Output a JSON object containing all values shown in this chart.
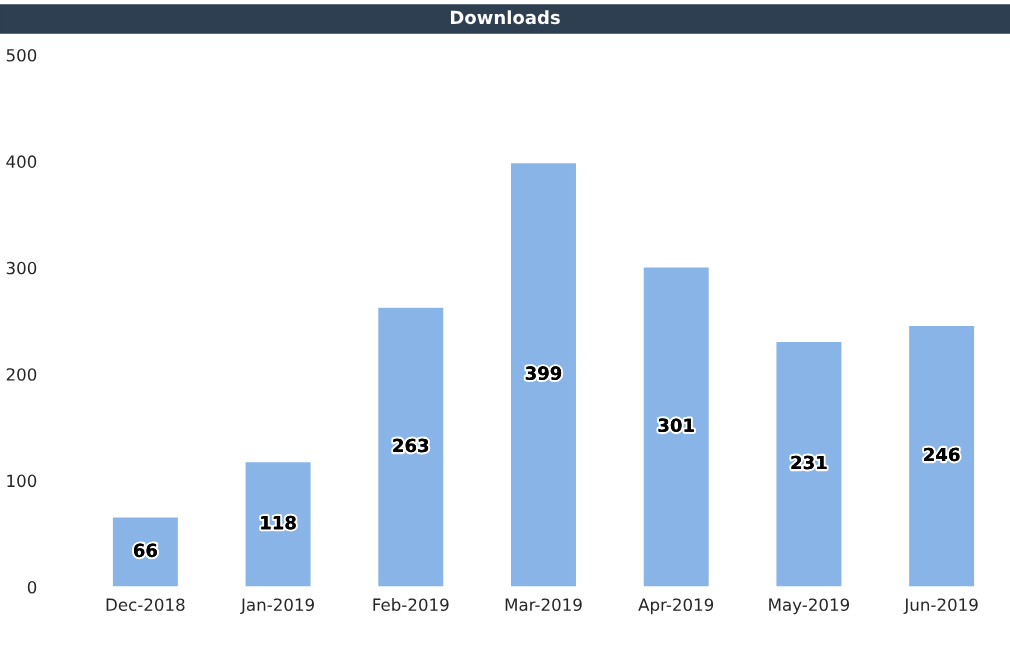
{
  "chart_data": {
    "type": "bar",
    "title": "Downloads",
    "categories": [
      "Dec-2018",
      "Jan-2019",
      "Feb-2019",
      "Mar-2019",
      "Apr-2019",
      "May-2019",
      "Jun-2019"
    ],
    "values": [
      66,
      118,
      263,
      399,
      301,
      231,
      246
    ],
    "color": "#89b4e8",
    "ylim": [
      0,
      500
    ],
    "yticks": [
      0,
      100,
      200,
      300,
      400,
      500
    ],
    "data_labels": true,
    "grid": false,
    "legend": false
  }
}
